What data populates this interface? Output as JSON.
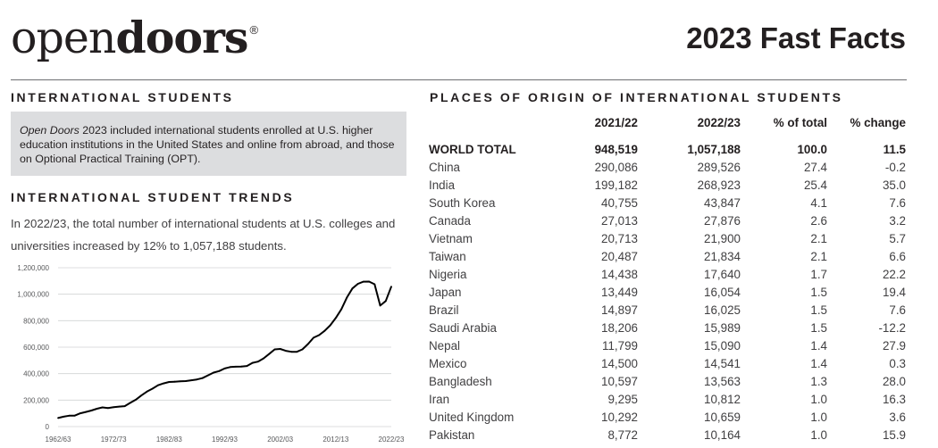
{
  "header": {
    "logo_light": "open",
    "logo_bold": "doors",
    "logo_mark": "®",
    "title": "2023 Fast Facts"
  },
  "left": {
    "section_title": "INTERNATIONAL STUDENTS",
    "note_italic": "Open Doors",
    "note_rest": " 2023 included international students enrolled at U.S. higher education institutions in the United States and online from abroad, and those on Optional Practical Training (OPT).",
    "trends_title": "INTERNATIONAL STUDENT TRENDS",
    "trends_text": "In 2022/23, the total number of international students at U.S. colleges and universities increased by 12% to 1,057,188 students."
  },
  "chart_data": {
    "type": "line",
    "title": "",
    "xlabel": "",
    "ylabel": "",
    "x_ticks": [
      "1962/63",
      "1972/73",
      "1982/83",
      "1992/93",
      "2002/03",
      "2012/13",
      "2022/23"
    ],
    "y_ticks": [
      "0",
      "200,000",
      "400,000",
      "600,000",
      "800,000",
      "1,000,000",
      "1,200,000"
    ],
    "ylim": [
      0,
      1200000
    ],
    "grid": "horizontal",
    "series": [
      {
        "years": [
          1962,
          1963,
          1964,
          1965,
          1966,
          1967,
          1968,
          1969,
          1970,
          1971,
          1972,
          1973,
          1974,
          1975,
          1976,
          1977,
          1978,
          1979,
          1980,
          1981,
          1982,
          1983,
          1984,
          1985,
          1986,
          1987,
          1988,
          1989,
          1990,
          1991,
          1992,
          1993,
          1994,
          1995,
          1996,
          1997,
          1998,
          1999,
          2000,
          2001,
          2002,
          2003,
          2004,
          2005,
          2006,
          2007,
          2008,
          2009,
          2010,
          2011,
          2012,
          2013,
          2014,
          2015,
          2016,
          2017,
          2018,
          2019,
          2020,
          2021,
          2022
        ],
        "values": [
          64705,
          74814,
          82045,
          82709,
          100262,
          110315,
          121362,
          134959,
          144708,
          140126,
          146097,
          151066,
          154580,
          179344,
          203068,
          235509,
          263938,
          286343,
          311880,
          326299,
          336985,
          338894,
          342113,
          343777,
          349609,
          356187,
          366354,
          386851,
          407529,
          419585,
          438618,
          449749,
          452635,
          453787,
          457984,
          481280,
          490933,
          514723,
          547867,
          582996,
          586323,
          572509,
          565039,
          564766,
          582984,
          623805,
          671616,
          690923,
          723277,
          764495,
          819644,
          886052,
          974926,
          1043839,
          1078822,
          1094792,
          1095299,
          1075496,
          914095,
          948519,
          1057188
        ]
      }
    ]
  },
  "table": {
    "title": "PLACES OF ORIGIN OF INTERNATIONAL STUDENTS",
    "columns": [
      "",
      "2021/22",
      "2022/23",
      "% of total",
      "% change"
    ],
    "rows": [
      [
        "WORLD TOTAL",
        "948,519",
        "1,057,188",
        "100.0",
        "11.5"
      ],
      [
        "China",
        "290,086",
        "289,526",
        "27.4",
        "-0.2"
      ],
      [
        "India",
        "199,182",
        "268,923",
        "25.4",
        "35.0"
      ],
      [
        "South Korea",
        "40,755",
        "43,847",
        "4.1",
        "7.6"
      ],
      [
        "Canada",
        "27,013",
        "27,876",
        "2.6",
        "3.2"
      ],
      [
        "Vietnam",
        "20,713",
        "21,900",
        "2.1",
        "5.7"
      ],
      [
        "Taiwan",
        "20,487",
        "21,834",
        "2.1",
        "6.6"
      ],
      [
        "Nigeria",
        "14,438",
        "17,640",
        "1.7",
        "22.2"
      ],
      [
        "Japan",
        "13,449",
        "16,054",
        "1.5",
        "19.4"
      ],
      [
        "Brazil",
        "14,897",
        "16,025",
        "1.5",
        "7.6"
      ],
      [
        "Saudi Arabia",
        "18,206",
        "15,989",
        "1.5",
        "-12.2"
      ],
      [
        "Nepal",
        "11,799",
        "15,090",
        "1.4",
        "27.9"
      ],
      [
        "Mexico",
        "14,500",
        "14,541",
        "1.4",
        "0.3"
      ],
      [
        "Bangladesh",
        "10,597",
        "13,563",
        "1.3",
        "28.0"
      ],
      [
        "Iran",
        "9,295",
        "10,812",
        "1.0",
        "16.3"
      ],
      [
        "United Kingdom",
        "10,292",
        "10,659",
        "1.0",
        "3.6"
      ],
      [
        "Pakistan",
        "8,772",
        "10,164",
        "1.0",
        "15.9"
      ]
    ]
  },
  "colors": {
    "text": "#231f20",
    "box": "#dcdddf",
    "rule": "#6d6e71",
    "line": "#000000",
    "grid": "#d1d3d4"
  }
}
